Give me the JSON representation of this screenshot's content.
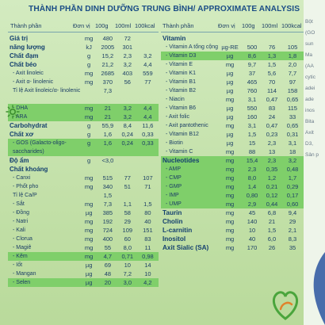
{
  "title": "THÀNH PHẦN DINH DƯỠNG TRUNG BÌNH/ APPROXIMATE ANALYSIS",
  "left_header": {
    "name": "Thành phần",
    "unit": "Đơn vị",
    "c1": "100g",
    "c2": "100ml",
    "c3": "100kcal"
  },
  "right_header": {
    "name": "Thành phần",
    "unit": "Đơn vị",
    "c1": "100g",
    "c2": "100ml",
    "c3": "100kcal"
  },
  "left_rows": [
    {
      "name": "Giá trị",
      "unit": "mg",
      "c1": "480",
      "c2": "72",
      "c3": "",
      "style": "bold"
    },
    {
      "name": "năng lượng",
      "unit": "kJ",
      "c1": "2005",
      "c2": "301",
      "c3": "",
      "style": "bold"
    },
    {
      "name": "Chất đạm",
      "unit": "g",
      "c1": "15,2",
      "c2": "2,3",
      "c3": "3,2",
      "style": "bold"
    },
    {
      "name": "Chất béo",
      "unit": "g",
      "c1": "21,2",
      "c2": "3,2",
      "c3": "4,4",
      "style": "bold"
    },
    {
      "name": "- Axit linoleic",
      "unit": "mg",
      "c1": "2685",
      "c2": "403",
      "c3": "559",
      "style": "sub"
    },
    {
      "name": "- Axit α- linolenic",
      "unit": "mg",
      "c1": "370",
      "c2": "56",
      "c3": "77",
      "style": "sub"
    },
    {
      "name": "Tỉ lệ Axit linoleic/α- linolenic",
      "unit": "",
      "c1": "7,3",
      "c2": "",
      "c3": "",
      "style": "sub"
    },
    {
      "name": "",
      "unit": "",
      "c1": "",
      "c2": "",
      "c3": "",
      "style": "sub"
    },
    {
      "name": "- DHA",
      "unit": "mg",
      "c1": "21",
      "c2": "3,2",
      "c3": "4,4",
      "style": "hl"
    },
    {
      "name": "- ARA",
      "unit": "mg",
      "c1": "21",
      "c2": "3,2",
      "c3": "4,4",
      "style": "hl"
    },
    {
      "name": "Carbohydrat",
      "unit": "g",
      "c1": "55,9",
      "c2": "8,4",
      "c3": "11,6",
      "style": "bold"
    },
    {
      "name": "Chất xơ",
      "unit": "g",
      "c1": "1,6",
      "c2": "0,24",
      "c3": "0,33",
      "style": "bold"
    },
    {
      "name": "- GOS (Galacto-oligo-",
      "unit": "g",
      "c1": "1,6",
      "c2": "0,24",
      "c3": "0,33",
      "style": "hl"
    },
    {
      "name": "saccharides)",
      "unit": "",
      "c1": "",
      "c2": "",
      "c3": "",
      "style": "hl"
    },
    {
      "name": "Độ ẩm",
      "unit": "g",
      "c1": "<3,0",
      "c2": "",
      "c3": "",
      "style": "bold"
    },
    {
      "name": "Chất khoáng",
      "unit": "",
      "c1": "",
      "c2": "",
      "c3": "",
      "style": "bold"
    },
    {
      "name": "- Canxi",
      "unit": "mg",
      "c1": "515",
      "c2": "77",
      "c3": "107",
      "style": "sub"
    },
    {
      "name": "- Phốt pho",
      "unit": "mg",
      "c1": "340",
      "c2": "51",
      "c3": "71",
      "style": "sub"
    },
    {
      "name": "Tỉ lệ Ca/P",
      "unit": "",
      "c1": "1,5",
      "c2": "",
      "c3": "",
      "style": "sub"
    },
    {
      "name": "- Sắt",
      "unit": "mg",
      "c1": "7,3",
      "c2": "1,1",
      "c3": "1,5",
      "style": "sub"
    },
    {
      "name": "- Đồng",
      "unit": "µg",
      "c1": "385",
      "c2": "58",
      "c3": "80",
      "style": "sub"
    },
    {
      "name": "- Natri",
      "unit": "mg",
      "c1": "192",
      "c2": "29",
      "c3": "40",
      "style": "sub"
    },
    {
      "name": "- Kali",
      "unit": "mg",
      "c1": "724",
      "c2": "109",
      "c3": "151",
      "style": "sub"
    },
    {
      "name": "- Clorua",
      "unit": "mg",
      "c1": "400",
      "c2": "60",
      "c3": "83",
      "style": "sub"
    },
    {
      "name": "- Magiê",
      "unit": "mg",
      "c1": "55",
      "c2": "8,0",
      "c3": "11",
      "style": "sub"
    },
    {
      "name": "- Kẽm",
      "unit": "mg",
      "c1": "4,7",
      "c2": "0,71",
      "c3": "0,98",
      "style": "hl"
    },
    {
      "name": "- Iốt",
      "unit": "µg",
      "c1": "69",
      "c2": "10",
      "c3": "14",
      "style": "sub"
    },
    {
      "name": "- Mangan",
      "unit": "µg",
      "c1": "48",
      "c2": "7,2",
      "c3": "10",
      "style": "sub"
    },
    {
      "name": "- Selen",
      "unit": "µg",
      "c1": "20",
      "c2": "3,0",
      "c3": "4,2",
      "style": "hl"
    }
  ],
  "right_rows": [
    {
      "name": "Vitamin",
      "unit": "",
      "c1": "",
      "c2": "",
      "c3": "",
      "style": "sec"
    },
    {
      "name": "- Vitamin A tổng cộng",
      "unit": "µg-RE",
      "c1": "500",
      "c2": "76",
      "c3": "105",
      "style": "sub"
    },
    {
      "name": "- Vitamin D3",
      "unit": "µg",
      "c1": "8,6",
      "c2": "1,3",
      "c3": "1,8",
      "style": "hl"
    },
    {
      "name": "- Vitamin E",
      "unit": "mg",
      "c1": "9,7",
      "c2": "1,5",
      "c3": "2,0",
      "style": "sub"
    },
    {
      "name": "- Vitamin K1",
      "unit": "µg",
      "c1": "37",
      "c2": "5,6",
      "c3": "7,7",
      "style": "sub"
    },
    {
      "name": "- Vitamin B1",
      "unit": "µg",
      "c1": "465",
      "c2": "70",
      "c3": "97",
      "style": "sub"
    },
    {
      "name": "- Vitamin B2",
      "unit": "µg",
      "c1": "760",
      "c2": "114",
      "c3": "158",
      "style": "sub"
    },
    {
      "name": "- Niacin",
      "unit": "mg",
      "c1": "3,1",
      "c2": "0,47",
      "c3": "0,65",
      "style": "sub"
    },
    {
      "name": "- Vitamin B6",
      "unit": "µg",
      "c1": "550",
      "c2": "83",
      "c3": "115",
      "style": "sub"
    },
    {
      "name": "- Axit folic",
      "unit": "µg",
      "c1": "160",
      "c2": "24",
      "c3": "33",
      "style": "sub"
    },
    {
      "name": "- Axit pantothenic",
      "unit": "mg",
      "c1": "3,1",
      "c2": "0,47",
      "c3": "0,65",
      "style": "sub"
    },
    {
      "name": "- Vitamin B12",
      "unit": "µg",
      "c1": "1,5",
      "c2": "0,23",
      "c3": "0,31",
      "style": "sub"
    },
    {
      "name": "- Biotin",
      "unit": "µg",
      "c1": "15",
      "c2": "2,3",
      "c3": "3,1",
      "style": "sub"
    },
    {
      "name": "- Vitamin C",
      "unit": "mg",
      "c1": "88",
      "c2": "13",
      "c3": "18",
      "style": "sub"
    },
    {
      "name": "Nucleotides",
      "unit": "mg",
      "c1": "15,4",
      "c2": "2,3",
      "c3": "3,2",
      "style": "hlsec"
    },
    {
      "name": "- AMP",
      "unit": "mg",
      "c1": "2,3",
      "c2": "0,35",
      "c3": "0,48",
      "style": "hl"
    },
    {
      "name": "- CMP",
      "unit": "mg",
      "c1": "8,0",
      "c2": "1,2",
      "c3": "1,7",
      "style": "hl"
    },
    {
      "name": "- GMP",
      "unit": "mg",
      "c1": "1,4",
      "c2": "0,21",
      "c3": "0,29",
      "style": "hl"
    },
    {
      "name": "- IMP",
      "unit": "mg",
      "c1": "0,80",
      "c2": "0,12",
      "c3": "0,17",
      "style": "hl"
    },
    {
      "name": "- UMP",
      "unit": "mg",
      "c1": "2,9",
      "c2": "0,44",
      "c3": "0,60",
      "style": "hl"
    },
    {
      "name": "Taurin",
      "unit": "mg",
      "c1": "45",
      "c2": "6,8",
      "c3": "9,4",
      "style": "sec"
    },
    {
      "name": "Cholin",
      "unit": "mg",
      "c1": "140",
      "c2": "21",
      "c3": "29",
      "style": "sec"
    },
    {
      "name": "L-carnitin",
      "unit": "mg",
      "c1": "10",
      "c2": "1,5",
      "c3": "2,1",
      "style": "sec"
    },
    {
      "name": "Inositol",
      "unit": "mg",
      "c1": "40",
      "c2": "6,0",
      "c3": "8,3",
      "style": "sec"
    },
    {
      "name": "Axit Sialic (SA)",
      "unit": "mg",
      "c1": "170",
      "c2": "26",
      "c3": "35",
      "style": "sec"
    }
  ],
  "side_text": [
    "Bột",
    "(GO",
    "sun",
    "Ma",
    "(AA",
    "cytic",
    "adei",
    "ade",
    "inos",
    "Bita",
    "Axit",
    "D3,",
    "Sản p"
  ],
  "colors": {
    "highlight": "#7fcf6a",
    "text": "#1c3f66",
    "background": "#c7e3b0",
    "accent_blue": "#2f6aa3"
  }
}
